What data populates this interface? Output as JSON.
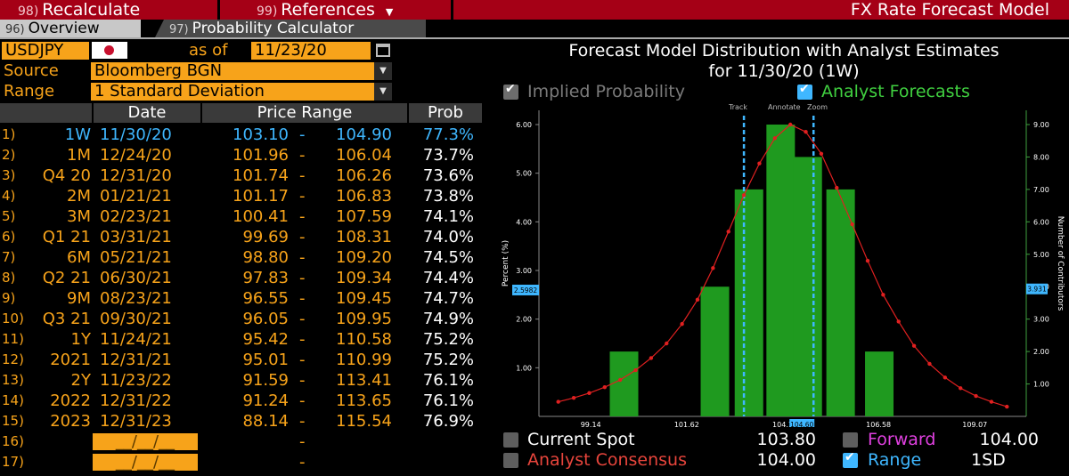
{
  "topbar": {
    "recalc_num": "98)",
    "recalc_label": "Recalculate",
    "refs_num": "99)",
    "refs_label": "References",
    "title": "FX Rate Forecast Model"
  },
  "tabs": [
    {
      "num": "96)",
      "label": "Overview"
    },
    {
      "num": "97)",
      "label": "Probability Calculator"
    }
  ],
  "form": {
    "ticker": "USDJPY",
    "as_of_label": "as of",
    "as_of_value": "11/23/20",
    "source_label": "Source",
    "source_value": "Bloomberg BGN",
    "range_label": "Range",
    "range_value": "1 Standard Deviation"
  },
  "table": {
    "headers": {
      "date": "Date",
      "price_range": "Price Range",
      "prob": "Prob"
    },
    "rows": [
      {
        "idx": "1)",
        "tenor": "1W",
        "date": "11/30/20",
        "low": "103.10",
        "high": "104.90",
        "prob": "77.3%"
      },
      {
        "idx": "2)",
        "tenor": "1M",
        "date": "12/24/20",
        "low": "101.96",
        "high": "106.04",
        "prob": "73.7%"
      },
      {
        "idx": "3)",
        "tenor": "Q4 20",
        "date": "12/31/20",
        "low": "101.74",
        "high": "106.26",
        "prob": "73.6%"
      },
      {
        "idx": "4)",
        "tenor": "2M",
        "date": "01/21/21",
        "low": "101.17",
        "high": "106.83",
        "prob": "73.8%"
      },
      {
        "idx": "5)",
        "tenor": "3M",
        "date": "02/23/21",
        "low": "100.41",
        "high": "107.59",
        "prob": "74.1%"
      },
      {
        "idx": "6)",
        "tenor": "Q1 21",
        "date": "03/31/21",
        "low": "99.69",
        "high": "108.31",
        "prob": "74.0%"
      },
      {
        "idx": "7)",
        "tenor": "6M",
        "date": "05/21/21",
        "low": "98.80",
        "high": "109.20",
        "prob": "74.5%"
      },
      {
        "idx": "8)",
        "tenor": "Q2 21",
        "date": "06/30/21",
        "low": "97.83",
        "high": "109.34",
        "prob": "74.4%"
      },
      {
        "idx": "9)",
        "tenor": "9M",
        "date": "08/23/21",
        "low": "96.55",
        "high": "109.45",
        "prob": "74.7%"
      },
      {
        "idx": "10)",
        "tenor": "Q3 21",
        "date": "09/30/21",
        "low": "96.05",
        "high": "109.95",
        "prob": "74.9%"
      },
      {
        "idx": "11)",
        "tenor": "1Y",
        "date": "11/24/21",
        "low": "95.42",
        "high": "110.58",
        "prob": "75.2%"
      },
      {
        "idx": "12)",
        "tenor": "2021",
        "date": "12/31/21",
        "low": "95.01",
        "high": "110.99",
        "prob": "75.2%"
      },
      {
        "idx": "13)",
        "tenor": "2Y",
        "date": "11/23/22",
        "low": "91.59",
        "high": "113.41",
        "prob": "76.1%"
      },
      {
        "idx": "14)",
        "tenor": "2022",
        "date": "12/31/22",
        "low": "91.24",
        "high": "113.65",
        "prob": "76.1%"
      },
      {
        "idx": "15)",
        "tenor": "2023",
        "date": "12/31/23",
        "low": "88.14",
        "high": "115.54",
        "prob": "76.9%"
      },
      {
        "idx": "16)",
        "tenor": "",
        "date": "__/__/__",
        "low": "",
        "high": "",
        "prob": ""
      },
      {
        "idx": "17)",
        "tenor": "",
        "date": "__/__/__",
        "low": "",
        "high": "",
        "prob": ""
      }
    ]
  },
  "chart_panel": {
    "title_line1": "Forecast Model Distribution with Analyst Estimates",
    "title_line2": "for  11/30/20 (1W)",
    "legend_implied": "Implied Probability",
    "legend_analyst": "Analyst Forecasts",
    "toolbar": [
      "Track",
      "Annotate",
      "Zoom"
    ]
  },
  "footer": {
    "current_spot_label": "Current Spot",
    "current_spot_value": "103.80",
    "forward_label": "Forward",
    "forward_value": "104.00",
    "consensus_label": "Analyst Consensus",
    "consensus_value": "104.00",
    "range_label": "Range",
    "range_value": "1SD"
  },
  "colors": {
    "orange": "#f7a31a",
    "blue": "#3fb7ff",
    "bar_green": "#1f9a1f",
    "curve_red": "#e02020",
    "forward_magenta": "#e040e0",
    "consensus_red": "#e8453c",
    "analyst_green": "#40d040",
    "header_red": "#a50016"
  },
  "chart_data": {
    "type": "bar",
    "ylabel": "Percent (%)",
    "y2label": "Number of Contributors",
    "ylim": [
      0,
      6.0
    ],
    "y2lim": [
      0,
      9.0
    ],
    "xlim": [
      97.8,
      110.4
    ],
    "x_ticks": [
      "99.14",
      "101.62",
      "104.1",
      "106.58",
      "109.07"
    ],
    "y_ticks": [
      "1.00",
      "2.00",
      "3.00",
      "4.00",
      "5.00",
      "6.00"
    ],
    "y2_ticks": [
      "1.00",
      "2.00",
      "3.00",
      "4.00",
      "5.00",
      "6.00",
      "7.00",
      "8.00",
      "9.00"
    ],
    "left_marker": "2.5982",
    "right_marker": "3.931",
    "x_marker": "104.60",
    "bars": [
      {
        "center": 100.0,
        "contributors": 2
      },
      {
        "center": 102.35,
        "contributors": 4
      },
      {
        "center": 103.23,
        "contributors": 7
      },
      {
        "center": 104.05,
        "contributors": 9
      },
      {
        "center": 104.75,
        "contributors": 8
      },
      {
        "center": 105.6,
        "contributors": 7
      },
      {
        "center": 106.6,
        "contributors": 2
      }
    ],
    "range_lines": [
      103.1,
      104.9
    ],
    "curve": {
      "x": [
        98.3,
        98.7,
        99.1,
        99.5,
        99.9,
        100.3,
        100.7,
        101.1,
        101.5,
        101.9,
        102.3,
        102.7,
        103.1,
        103.5,
        103.9,
        104.3,
        104.7,
        105.1,
        105.5,
        105.9,
        106.3,
        106.7,
        107.1,
        107.5,
        107.9,
        108.3,
        108.7,
        109.1,
        109.5,
        109.9
      ],
      "y": [
        0.3,
        0.38,
        0.48,
        0.6,
        0.75,
        0.95,
        1.2,
        1.5,
        1.9,
        2.4,
        3.05,
        3.8,
        4.55,
        5.2,
        5.72,
        6.0,
        5.85,
        5.4,
        4.7,
        3.95,
        3.2,
        2.5,
        1.95,
        1.45,
        1.08,
        0.8,
        0.58,
        0.42,
        0.3,
        0.2
      ]
    }
  }
}
